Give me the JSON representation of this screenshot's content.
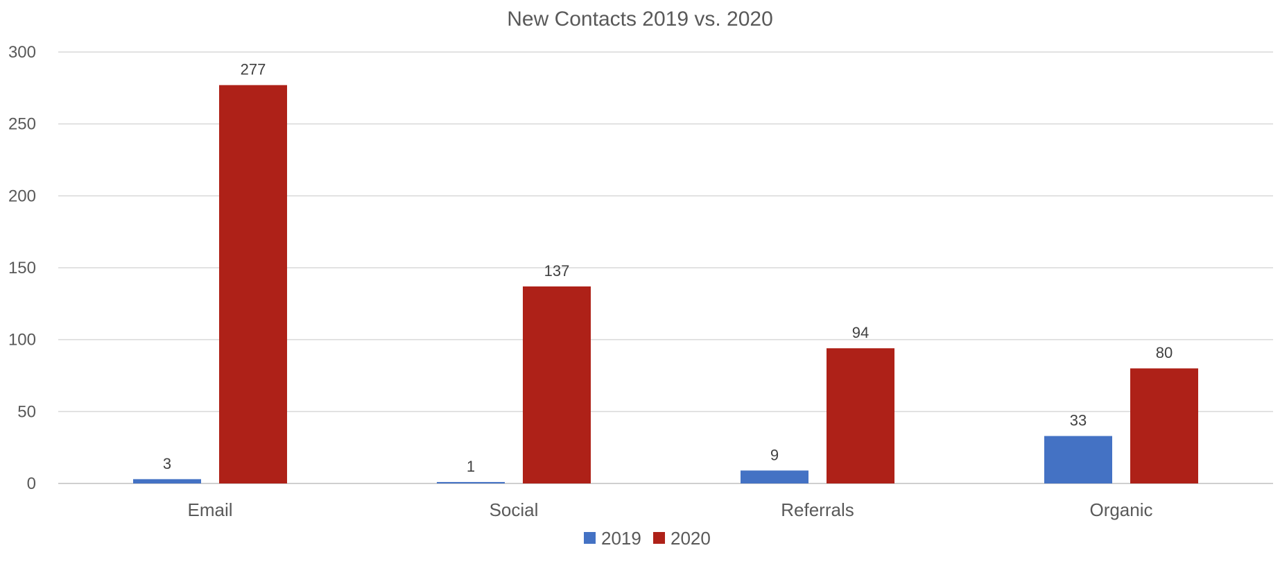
{
  "chart_data": {
    "type": "bar",
    "title": "New Contacts 2019 vs. 2020",
    "xlabel": "",
    "ylabel": "",
    "categories": [
      "Email",
      "Social",
      "Referrals",
      "Organic"
    ],
    "series": [
      {
        "name": "2019",
        "color": "#4472c4",
        "values": [
          3,
          1,
          9,
          33
        ]
      },
      {
        "name": "2020",
        "color": "#ae2118",
        "values": [
          277,
          137,
          94,
          80
        ]
      }
    ],
    "ylim": [
      0,
      300
    ],
    "yticks": [
      "0",
      "50",
      "100",
      "150",
      "200",
      "250",
      "300"
    ],
    "grid": true,
    "data_labels": true,
    "legend_position": "bottom"
  }
}
